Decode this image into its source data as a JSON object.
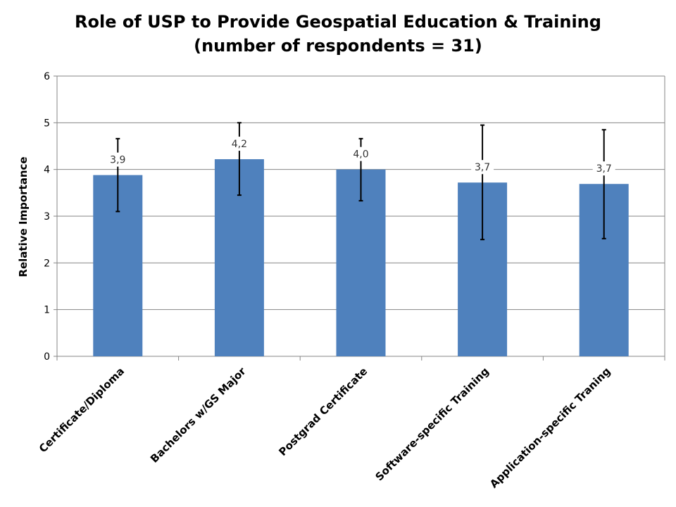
{
  "chart_data": {
    "type": "bar",
    "title": "Role of USP to Provide Geospatial Education & Training",
    "subtitle": "(number of respondents = 31)",
    "xlabel": "",
    "ylabel": "Relative Importance",
    "ylim": [
      0,
      6
    ],
    "yticks": [
      "0",
      "1",
      "2",
      "3",
      "4",
      "5",
      "6"
    ],
    "categories": [
      "Certificate/Diploma",
      "Bachelors w/GS Major",
      "Postgrad Certificate",
      "Software-specific Training",
      "Application-specific Traning"
    ],
    "values": [
      3.88,
      4.22,
      4.0,
      3.72,
      3.69
    ],
    "data_labels": [
      "3,9",
      "4,2",
      "4,0",
      "3,7",
      "3,7"
    ],
    "error_low": [
      3.1,
      3.45,
      3.33,
      2.5,
      2.52
    ],
    "error_high": [
      4.66,
      5.0,
      4.66,
      4.95,
      4.85
    ],
    "grid": true,
    "legend": "none",
    "bar_color": "#4f81bd"
  }
}
